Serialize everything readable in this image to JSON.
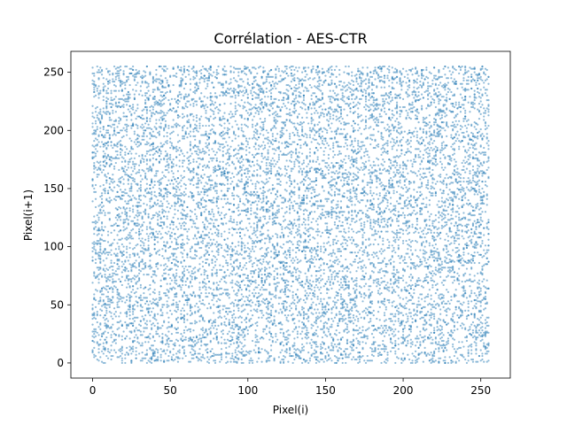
{
  "chart_data": {
    "type": "scatter",
    "title": "Corrélation - AES-CTR",
    "xlabel": "Pixel(i)",
    "ylabel": "Pixel(i+1)",
    "xlim": [
      -14,
      269
    ],
    "ylim": [
      -13,
      268
    ],
    "x_ticks": [
      0,
      50,
      100,
      150,
      200,
      250
    ],
    "y_ticks": [
      0,
      50,
      100,
      150,
      200,
      250
    ],
    "x_tick_labels": [
      "0",
      "50",
      "100",
      "150",
      "200",
      "250"
    ],
    "y_tick_labels": [
      "0",
      "50",
      "100",
      "150",
      "200",
      "250"
    ],
    "grid": false,
    "legend": "none",
    "color": "#1f77b4",
    "point_alpha": 0.5,
    "distribution": "uniform random pairs of 8-bit pixel values (0-255)",
    "series": [
      {
        "x": [
          3,
          17,
          25,
          41,
          58,
          63,
          77,
          89,
          96,
          104,
          118,
          125,
          137,
          146,
          159,
          171,
          183,
          190,
          204,
          216,
          227,
          238,
          249,
          255,
          12,
          33,
          71,
          109,
          152,
          199,
          232,
          251,
          0,
          84,
          143,
          176,
          211,
          245,
          7,
          129
        ],
        "y": [
          211,
          35,
          148,
          252,
          77,
          190,
          6,
          124,
          233,
          58,
          171,
          12,
          99,
          245,
          63,
          187,
          28,
          140,
          218,
          81,
          2,
          166,
          112,
          39,
          97,
          4,
          255,
          180,
          46,
          127,
          221,
          70,
          153,
          196,
          18,
          244,
          133,
          88,
          0,
          206
        ]
      }
    ]
  }
}
